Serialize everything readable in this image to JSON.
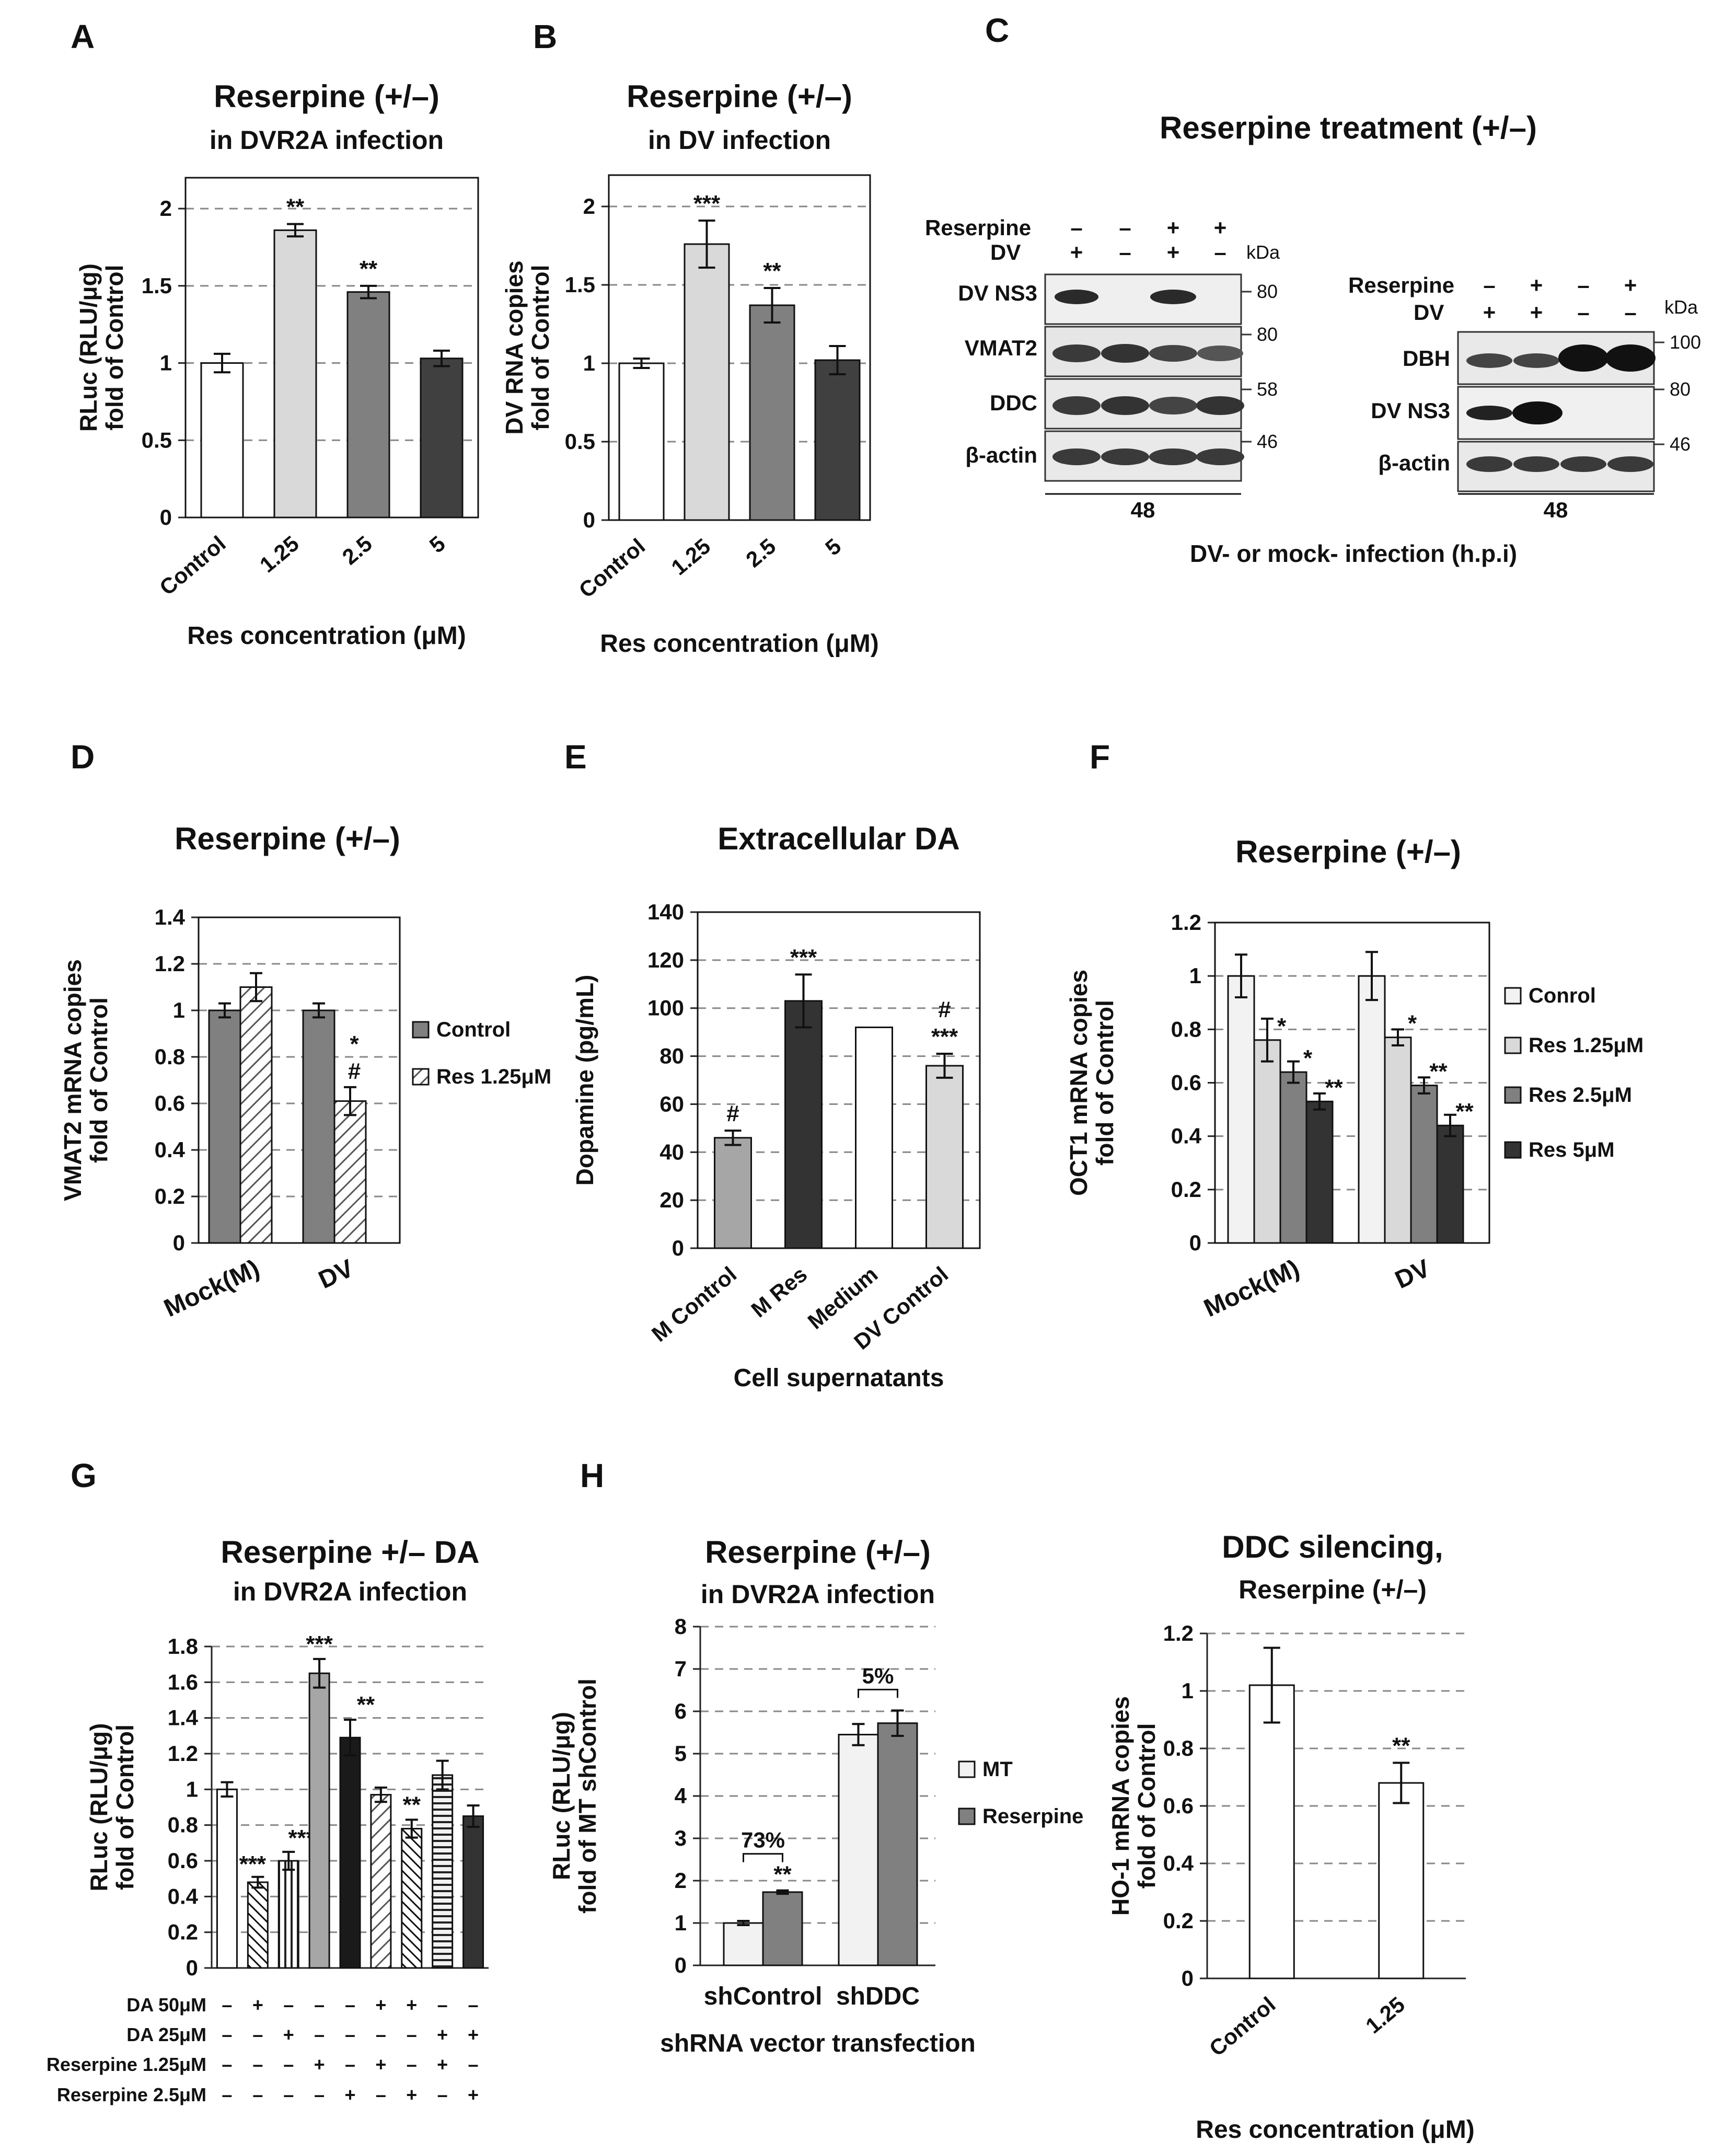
{
  "panel_labels": {
    "A": "A",
    "B": "B",
    "C": "C",
    "D": "D",
    "E": "E",
    "F": "F",
    "G": "G",
    "H": "H"
  },
  "panel_c": {
    "title": "Reserpine treatment (+/–)",
    "kda_label": "kDa",
    "left_blot": {
      "row_labels": [
        "Reserpine",
        "DV"
      ],
      "reserpine_signs": [
        "–",
        "–",
        "+",
        "+"
      ],
      "dv_signs": [
        "+",
        "–",
        "+",
        "–"
      ],
      "bands": [
        "DV NS3",
        "VMAT2",
        "DDC",
        "β-actin"
      ],
      "markers": [
        "80",
        "80",
        "58",
        "46"
      ],
      "timepoint": "48"
    },
    "right_blot": {
      "row_labels": [
        "Reserpine",
        "DV"
      ],
      "reserpine_signs": [
        "–",
        "+",
        "–",
        "+"
      ],
      "dv_signs": [
        "+",
        "+",
        "–",
        "–"
      ],
      "bands": [
        "DBH",
        "DV NS3",
        "β-actin"
      ],
      "markers": [
        "100",
        "80",
        "46"
      ],
      "timepoint": "48"
    },
    "xlabel": "DV- or mock- infection (h.p.i)"
  },
  "panel_g_table": {
    "rows": [
      {
        "label": "DA 50μM",
        "signs": [
          "–",
          "+",
          "–",
          "–",
          "–",
          "+",
          "+",
          "–",
          "–"
        ]
      },
      {
        "label": "DA 25μM",
        "signs": [
          "–",
          "–",
          "+",
          "–",
          "–",
          "–",
          "–",
          "+",
          "+"
        ]
      },
      {
        "label": "Reserpine 1.25μM",
        "signs": [
          "–",
          "–",
          "–",
          "+",
          "–",
          "+",
          "–",
          "+",
          "–"
        ]
      },
      {
        "label": "Reserpine 2.5μM",
        "signs": [
          "–",
          "–",
          "–",
          "–",
          "+",
          "–",
          "+",
          "–",
          "+"
        ]
      }
    ]
  },
  "chart_data": [
    {
      "id": "A",
      "type": "bar",
      "title": "Reserpine (+/–)",
      "subtitle": "in DVR2A infection",
      "ylabel": [
        "RLuc (RLU/μg)",
        "fold of Control"
      ],
      "xlabel": "Res concentration (μM)",
      "categories": [
        "Control",
        "1.25",
        "2.5",
        "5"
      ],
      "values": [
        1.0,
        1.86,
        1.46,
        1.03
      ],
      "errors": [
        0.06,
        0.04,
        0.04,
        0.05
      ],
      "colors": [
        "#ffffff",
        "#d9d9d9",
        "#808080",
        "#404040"
      ],
      "annotations": [
        "",
        "**",
        "**",
        ""
      ],
      "yticks": [
        "0",
        "0.5",
        "1",
        "1.5",
        "2"
      ],
      "ylim": [
        0,
        2.2
      ]
    },
    {
      "id": "B",
      "type": "bar",
      "title": "Reserpine (+/–)",
      "subtitle": "in DV infection",
      "ylabel": [
        "DV RNA copies",
        "fold of Control"
      ],
      "xlabel": "Res concentration (μM)",
      "categories": [
        "Control",
        "1.25",
        "2.5",
        "5"
      ],
      "values": [
        1.0,
        1.76,
        1.37,
        1.02
      ],
      "errors": [
        0.03,
        0.15,
        0.11,
        0.09
      ],
      "colors": [
        "#ffffff",
        "#d9d9d9",
        "#808080",
        "#404040"
      ],
      "annotations": [
        "",
        "***",
        "**",
        ""
      ],
      "yticks": [
        "0",
        "0.5",
        "1",
        "1.5",
        "2"
      ],
      "ylim": [
        0,
        2.2
      ]
    },
    {
      "id": "D",
      "type": "bar",
      "title": "Reserpine (+/–)",
      "ylabel": [
        "VMAT2 mRNA copies",
        "fold of Control"
      ],
      "groups": [
        "Mock(M)",
        "DV"
      ],
      "series": [
        {
          "name": "Control",
          "values": [
            1.0,
            1.0
          ],
          "errors": [
            0.03,
            0.03
          ],
          "annotations": [
            "",
            ""
          ]
        },
        {
          "name": "Res 1.25μM",
          "values": [
            1.1,
            0.61
          ],
          "errors": [
            0.06,
            0.06
          ],
          "annotations": [
            "",
            "*\n#"
          ]
        }
      ],
      "yticks": [
        "0",
        "0.2",
        "0.4",
        "0.6",
        "0.8",
        "1",
        "1.2",
        "1.4"
      ],
      "ylim": [
        0,
        1.4
      ]
    },
    {
      "id": "E",
      "type": "bar",
      "title": "Extracellular DA",
      "ylabel": [
        "Dopamine (pg/mL)"
      ],
      "xlabel": "Cell supernatants",
      "categories": [
        "M Control",
        "M Res",
        "Medium",
        "DV Control"
      ],
      "values": [
        46,
        103,
        92,
        76
      ],
      "errors": [
        3,
        11,
        0,
        5
      ],
      "colors": [
        "#a6a6a6",
        "#333333",
        "#ffffff",
        "#d9d9d9"
      ],
      "annotations": [
        "#",
        "***",
        "",
        "#\n***"
      ],
      "yticks": [
        "0",
        "20",
        "40",
        "60",
        "80",
        "100",
        "120",
        "140"
      ],
      "ylim": [
        0,
        140
      ]
    },
    {
      "id": "F",
      "type": "bar",
      "title": "Reserpine (+/–)",
      "ylabel": [
        "OCT1 mRNA copies",
        "fold of Control"
      ],
      "groups": [
        "Mock(M)",
        "DV"
      ],
      "series": [
        {
          "name": "Conrol",
          "values": [
            1.0,
            1.0
          ],
          "errors": [
            0.08,
            0.09
          ],
          "annotations": [
            "",
            ""
          ]
        },
        {
          "name": "Res 1.25μM",
          "values": [
            0.76,
            0.77
          ],
          "errors": [
            0.08,
            0.03
          ],
          "annotations": [
            "*",
            "*"
          ]
        },
        {
          "name": "Res 2.5μM",
          "values": [
            0.64,
            0.59
          ],
          "errors": [
            0.04,
            0.03
          ],
          "annotations": [
            "*",
            "**"
          ]
        },
        {
          "name": "Res 5μM",
          "values": [
            0.53,
            0.44
          ],
          "errors": [
            0.03,
            0.04
          ],
          "annotations": [
            "**",
            "**"
          ]
        }
      ],
      "yticks": [
        "0",
        "0.2",
        "0.4",
        "0.6",
        "0.8",
        "1",
        "1.2"
      ],
      "ylim": [
        0,
        1.2
      ]
    },
    {
      "id": "G",
      "type": "bar",
      "title": "Reserpine +/– DA",
      "subtitle": "in DVR2A infection",
      "ylabel": [
        "RLuc (RLU/μg)",
        "fold of Control"
      ],
      "values": [
        1.0,
        0.48,
        0.6,
        1.65,
        1.29,
        0.97,
        0.78,
        1.08,
        0.85
      ],
      "errors": [
        0.04,
        0.03,
        0.05,
        0.08,
        0.1,
        0.04,
        0.05,
        0.08,
        0.06
      ],
      "annotations": [
        "",
        "***",
        "***",
        "***",
        "**",
        "",
        "**",
        "",
        ""
      ],
      "yticks": [
        "0",
        "0.2",
        "0.4",
        "0.6",
        "0.8",
        "1",
        "1.2",
        "1.4",
        "1.6",
        "1.8"
      ],
      "ylim": [
        0,
        1.8
      ]
    },
    {
      "id": "H",
      "type": "bar",
      "title": "Reserpine (+/–)",
      "subtitle": "in DVR2A infection",
      "ylabel": [
        "RLuc (RLU/μg)",
        "fold of MT shControl"
      ],
      "xlabel": "shRNA vector transfection",
      "groups": [
        "shControl",
        "shDDC"
      ],
      "series": [
        {
          "name": "MT",
          "values": [
            1.0,
            5.45
          ],
          "errors": [
            0.05,
            0.25
          ],
          "annotations": [
            "",
            ""
          ]
        },
        {
          "name": "Reserpine",
          "values": [
            1.73,
            5.72
          ],
          "errors": [
            0.04,
            0.3
          ],
          "annotations": [
            "**",
            ""
          ]
        }
      ],
      "brackets": [
        "73%",
        "5%"
      ],
      "yticks": [
        "0",
        "1",
        "2",
        "3",
        "4",
        "5",
        "6",
        "7",
        "8"
      ],
      "ylim": [
        0,
        8
      ]
    },
    {
      "id": "I",
      "type": "bar",
      "title": "DDC silencing,",
      "subtitle": "Reserpine (+/–)",
      "ylabel": [
        "HO-1 mRNA copies",
        "fold of Control"
      ],
      "xlabel": "Res concentration (μM)",
      "categories": [
        "Control",
        "1.25"
      ],
      "values": [
        1.02,
        0.68
      ],
      "errors": [
        0.13,
        0.07
      ],
      "colors": [
        "#ffffff",
        "#ffffff"
      ],
      "annotations": [
        "",
        "**"
      ],
      "yticks": [
        "0",
        "0.2",
        "0.4",
        "0.6",
        "0.8",
        "1",
        "1.2"
      ],
      "ylim": [
        0,
        1.2
      ]
    }
  ]
}
